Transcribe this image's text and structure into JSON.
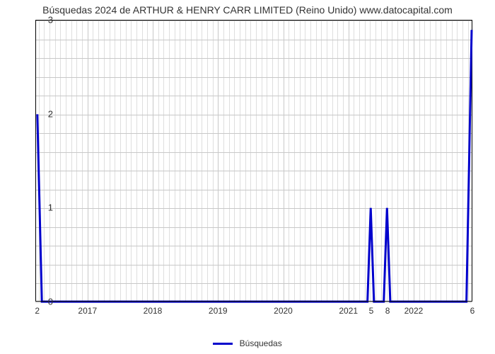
{
  "title": "Búsquedas 2024 de ARTHUR & HENRY CARR LIMITED (Reino Unido) www.datocapital.com",
  "chart": {
    "type": "line",
    "series_label": "Búsquedas",
    "series_color": "#0000cc",
    "line_width": 3,
    "background_color": "#ffffff",
    "grid_color": "#c8c8c8",
    "axis_color": "#000000",
    "text_color": "#333333",
    "title_fontsize": 14,
    "tick_fontsize": 13,
    "legend_fontsize": 12,
    "ylim": [
      0,
      3
    ],
    "yticks": [
      0,
      1,
      2,
      3
    ],
    "y_minor_count": 4,
    "xlim": [
      2016.2,
      2022.9
    ],
    "x_major_ticks": [
      2017,
      2018,
      2019,
      2020,
      2021,
      2022
    ],
    "x_minor_labels": [
      {
        "x": 2016.23,
        "label": "2"
      },
      {
        "x": 2021.35,
        "label": "5"
      },
      {
        "x": 2021.6,
        "label": "8"
      },
      {
        "x": 2022.9,
        "label": "6"
      }
    ],
    "points": [
      {
        "x": 2016.23,
        "y": 2
      },
      {
        "x": 2016.3,
        "y": 0
      },
      {
        "x": 2021.3,
        "y": 0
      },
      {
        "x": 2021.35,
        "y": 1
      },
      {
        "x": 2021.4,
        "y": 0
      },
      {
        "x": 2021.55,
        "y": 0
      },
      {
        "x": 2021.6,
        "y": 1
      },
      {
        "x": 2021.65,
        "y": 0
      },
      {
        "x": 2022.82,
        "y": 0
      },
      {
        "x": 2022.9,
        "y": 2.9
      }
    ]
  }
}
